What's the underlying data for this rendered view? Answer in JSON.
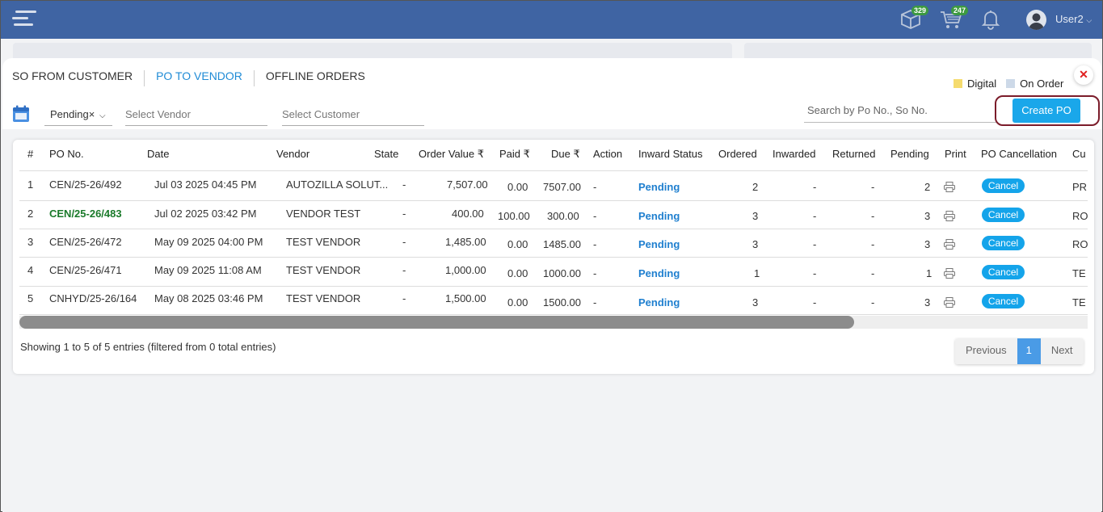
{
  "header": {
    "cube_badge": "329",
    "cart_badge": "247",
    "user": "User2"
  },
  "tabs": [
    {
      "label": "SO FROM CUSTOMER"
    },
    {
      "label": "PO TO VENDOR"
    },
    {
      "label": "OFFLINE ORDERS"
    }
  ],
  "legend": {
    "digital": "Digital",
    "on_order": "On Order",
    "digital_color": "#f5db6e",
    "on_order_color": "#cdd9e8"
  },
  "close_glyph": "✕",
  "filters": {
    "status_value": "Pending×",
    "vendor_placeholder": "Select Vendor",
    "customer_placeholder": "Select Customer",
    "search_placeholder": "Search by Po No., So No.",
    "create_label": "Create PO"
  },
  "table": {
    "headers": [
      "#",
      "PO No.",
      "Date",
      "Vendor",
      "State",
      "Order Value ₹",
      "Paid ₹",
      "Due ₹",
      "Action",
      "Inward Status",
      "Ordered",
      "Inwarded",
      "Returned",
      "Pending",
      "Print",
      "PO Cancellation",
      "Cu"
    ],
    "rows": [
      {
        "num": "1",
        "po": "CEN/25-26/492",
        "date": "Jul 03 2025 04:45 PM",
        "vendor": "AUTOZILLA SOLUT...",
        "state": "-",
        "order_value": "7,507.00",
        "paid": "0.00",
        "due": "7507.00",
        "action": "-",
        "inward_status": "Pending",
        "ordered": "2",
        "inwarded": "-",
        "returned": "-",
        "pending": "2",
        "cancel": "Cancel",
        "customer": "PR"
      },
      {
        "num": "2",
        "po": "CEN/25-26/483",
        "date": "Jul 02 2025 03:42 PM",
        "vendor": "VENDOR TEST",
        "state": "-",
        "order_value": "400.00",
        "paid": "100.00",
        "due": "300.00",
        "action": "-",
        "inward_status": "Pending",
        "ordered": "3",
        "inwarded": "-",
        "returned": "-",
        "pending": "3",
        "cancel": "Cancel",
        "customer": "RO"
      },
      {
        "num": "3",
        "po": "CEN/25-26/472",
        "date": "May 09 2025 04:00 PM",
        "vendor": "TEST VENDOR",
        "state": "-",
        "order_value": "1,485.00",
        "paid": "0.00",
        "due": "1485.00",
        "action": "-",
        "inward_status": "Pending",
        "ordered": "3",
        "inwarded": "-",
        "returned": "-",
        "pending": "3",
        "cancel": "Cancel",
        "customer": "RO"
      },
      {
        "num": "4",
        "po": "CEN/25-26/471",
        "date": "May 09 2025 11:08 AM",
        "vendor": "TEST VENDOR",
        "state": "-",
        "order_value": "1,000.00",
        "paid": "0.00",
        "due": "1000.00",
        "action": "-",
        "inward_status": "Pending",
        "ordered": "1",
        "inwarded": "-",
        "returned": "-",
        "pending": "1",
        "cancel": "Cancel",
        "customer": "TE"
      },
      {
        "num": "5",
        "po": "CNHYD/25-26/164",
        "date": "May 08 2025 03:46 PM",
        "vendor": "TEST VENDOR",
        "state": "-",
        "order_value": "1,500.00",
        "paid": "0.00",
        "due": "1500.00",
        "action": "-",
        "inward_status": "Pending",
        "ordered": "3",
        "inwarded": "-",
        "returned": "-",
        "pending": "3",
        "cancel": "Cancel",
        "customer": "TE"
      }
    ]
  },
  "footer": {
    "showing": "Showing 1 to 5 of 5 entries (filtered from 0 total entries)",
    "prev": "Previous",
    "page": "1",
    "next": "Next"
  }
}
